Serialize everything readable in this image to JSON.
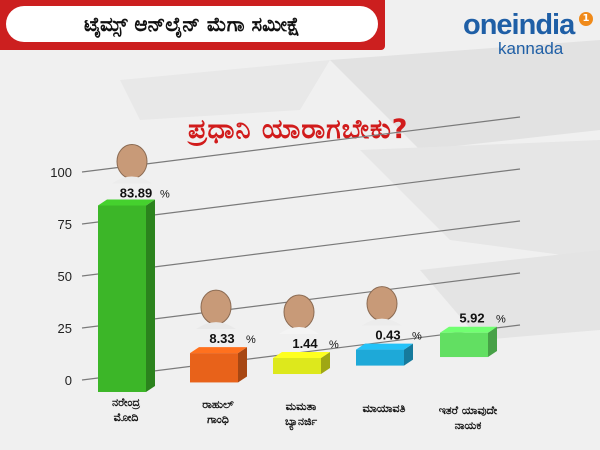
{
  "header": {
    "title": "ಟೈಮ್ಸ್ ಆನ್‌ಲೈನ್ ಮೆಗಾ ಸಮೀಕ್ಷೆ"
  },
  "logo": {
    "main": "oneindia",
    "sub": "kannada",
    "badge": "1",
    "brand_color": "#1f5fa6",
    "badge_color": "#f08a1a"
  },
  "question": "ಪ್ರಧಾನಿ ಯಾರಾಗಬೇಕು?",
  "chart_data": {
    "type": "bar",
    "title": "",
    "xlabel": "",
    "ylabel": "",
    "ylim": [
      0,
      100
    ],
    "yticks": [
      "0",
      "25",
      "50",
      "75",
      "100"
    ],
    "grid": true,
    "categories": [
      {
        "line1": "ನರೇಂದ್ರ",
        "line2": "ಮೋದಿ"
      },
      {
        "line1": "ರಾಹುಲ್",
        "line2": "ಗಾಂಧಿ"
      },
      {
        "line1": "ಮಮತಾ",
        "line2": "ಬ್ಯಾನರ್ಜಿ"
      },
      {
        "line1": "ಮಾಯಾವತಿ",
        "line2": ""
      },
      {
        "line1": "ಇತರೆ ಯಾವುದೇ",
        "line2": "ನಾಯಕ"
      }
    ],
    "values": [
      83.89,
      8.33,
      1.44,
      0.43,
      5.92
    ],
    "value_labels": [
      "83.89",
      "8.33",
      "1.44",
      "0.43",
      "5.92"
    ],
    "unit": "%",
    "colors": [
      "#3cb628",
      "#e8621a",
      "#dde81c",
      "#1ea9d8",
      "#62df62"
    ]
  }
}
